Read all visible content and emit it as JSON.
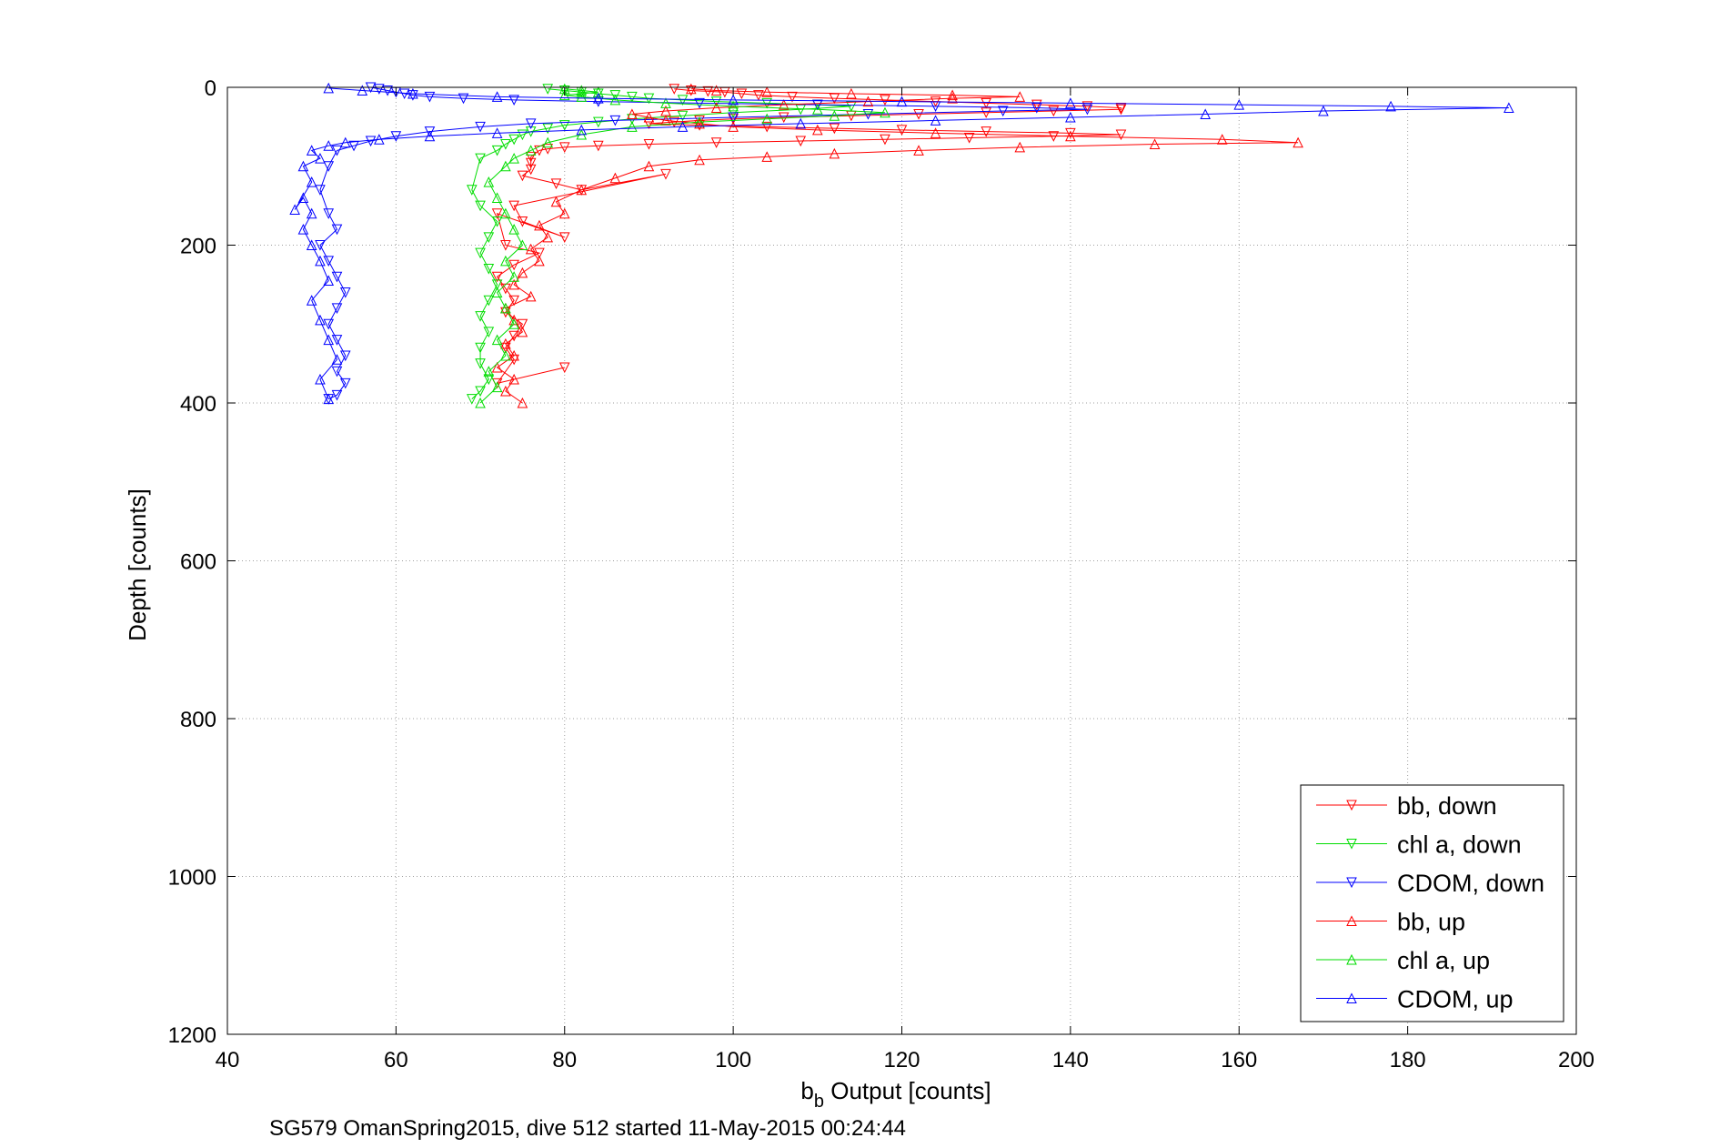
{
  "chart_data": {
    "type": "line",
    "xlabel_main": "b",
    "xlabel_sub": "b",
    "xlabel_rest": " Output [counts]",
    "ylabel": "Depth [counts]",
    "caption": "SG579 OmanSpring2015, dive 512 started 11-May-2015 00:24:44",
    "xlim": [
      40,
      200
    ],
    "ylim": [
      0,
      1200
    ],
    "y_reversed": true,
    "xticks": [
      "40",
      "60",
      "80",
      "100",
      "120",
      "140",
      "160",
      "180",
      "200"
    ],
    "yticks": [
      "0",
      "200",
      "400",
      "600",
      "800",
      "1000",
      "1200"
    ],
    "grid": true,
    "legend_position": "bottom-right",
    "series": [
      {
        "name": "bb, down",
        "color": "#ff0000",
        "marker": "triangle-down",
        "connected": true,
        "x": [
          93,
          95,
          97,
          99,
          101,
          103,
          107,
          112,
          118,
          124,
          130,
          136,
          142,
          146,
          146,
          138,
          130,
          122,
          114,
          106,
          100,
          96,
          93,
          90,
          96,
          104,
          112,
          120,
          130,
          140,
          146,
          138,
          128,
          118,
          108,
          98,
          90,
          84,
          80,
          78,
          77,
          76,
          76,
          76,
          75,
          79,
          82,
          92,
          74,
          75,
          80,
          72,
          73,
          77,
          74,
          72,
          73,
          74,
          73,
          75,
          74,
          73,
          74,
          72,
          80
        ],
        "y": [
          2,
          4,
          5,
          6,
          8,
          10,
          12,
          14,
          16,
          18,
          20,
          22,
          24,
          26,
          28,
          30,
          32,
          34,
          36,
          38,
          40,
          42,
          44,
          46,
          48,
          50,
          52,
          54,
          56,
          58,
          60,
          62,
          64,
          66,
          68,
          70,
          72,
          74,
          76,
          78,
          80,
          88,
          96,
          104,
          112,
          122,
          130,
          110,
          150,
          170,
          190,
          160,
          200,
          210,
          225,
          240,
          255,
          270,
          285,
          300,
          315,
          330,
          345,
          375,
          355
        ]
      },
      {
        "name": "chl a, down",
        "color": "#00dd00",
        "marker": "triangle-down",
        "connected": true,
        "x": [
          78,
          80,
          82,
          84,
          86,
          88,
          90,
          94,
          98,
          104,
          110,
          114,
          108,
          100,
          94,
          88,
          84,
          80,
          78,
          76,
          75,
          74,
          73,
          72,
          70,
          69,
          70,
          72,
          71,
          70,
          71,
          72,
          71,
          70,
          71,
          70,
          70,
          71,
          70,
          69
        ],
        "y": [
          2,
          4,
          6,
          8,
          10,
          12,
          14,
          16,
          18,
          20,
          22,
          24,
          28,
          32,
          36,
          40,
          44,
          48,
          52,
          56,
          60,
          66,
          72,
          80,
          90,
          130,
          150,
          170,
          190,
          210,
          230,
          250,
          270,
          290,
          310,
          330,
          350,
          370,
          385,
          395
        ]
      },
      {
        "name": "CDOM, down",
        "color": "#0000ff",
        "marker": "triangle-down",
        "connected": true,
        "x": [
          57,
          58,
          59,
          60,
          61,
          62,
          64,
          68,
          74,
          84,
          96,
          110,
          124,
          136,
          142,
          132,
          116,
          100,
          86,
          76,
          70,
          64,
          60,
          57,
          55,
          53,
          52,
          51,
          52,
          53,
          51,
          52,
          53,
          54,
          53,
          52,
          53,
          54,
          53,
          54,
          53,
          52
        ],
        "y": [
          0,
          2,
          4,
          6,
          8,
          10,
          12,
          14,
          16,
          18,
          20,
          22,
          24,
          26,
          28,
          30,
          34,
          38,
          42,
          46,
          50,
          56,
          62,
          68,
          74,
          80,
          100,
          130,
          160,
          180,
          200,
          220,
          240,
          260,
          280,
          300,
          320,
          340,
          360,
          375,
          390,
          395
        ]
      },
      {
        "name": "bb, up",
        "color": "#ff0000",
        "marker": "triangle-up",
        "connected": true,
        "x": [
          75,
          73,
          74,
          72,
          74,
          73,
          75,
          74,
          73,
          76,
          74,
          75,
          77,
          76,
          78,
          77,
          80,
          79,
          82,
          86,
          90,
          96,
          104,
          112,
          122,
          134,
          150,
          167,
          158,
          140,
          124,
          110,
          100,
          96,
          92,
          90,
          88,
          92,
          98,
          106,
          116,
          126,
          134,
          126,
          114,
          104,
          98,
          95
        ],
        "y": [
          400,
          385,
          370,
          355,
          340,
          325,
          310,
          295,
          280,
          265,
          250,
          235,
          220,
          205,
          190,
          175,
          160,
          145,
          130,
          115,
          100,
          92,
          88,
          84,
          80,
          76,
          72,
          70,
          66,
          62,
          58,
          54,
          50,
          46,
          42,
          38,
          34,
          30,
          26,
          22,
          18,
          14,
          12,
          10,
          8,
          6,
          4,
          2
        ]
      },
      {
        "name": "chl a, up",
        "color": "#00dd00",
        "marker": "triangle-up",
        "connected": true,
        "x": [
          70,
          72,
          71,
          73,
          72,
          74,
          73,
          72,
          74,
          73,
          75,
          74,
          73,
          72,
          71,
          73,
          74,
          76,
          78,
          82,
          88,
          96,
          104,
          112,
          118,
          110,
          100,
          92,
          86,
          82,
          80,
          82,
          84,
          82,
          80
        ],
        "y": [
          400,
          380,
          360,
          340,
          320,
          300,
          280,
          260,
          240,
          220,
          200,
          180,
          160,
          140,
          120,
          100,
          90,
          80,
          70,
          60,
          50,
          44,
          40,
          36,
          32,
          28,
          24,
          20,
          16,
          12,
          10,
          8,
          6,
          4,
          2
        ]
      },
      {
        "name": "CDOM, up",
        "color": "#0000ff",
        "marker": "triangle-up",
        "connected": true,
        "x": [
          52,
          51,
          53,
          52,
          51,
          50,
          52,
          51,
          50,
          49,
          50,
          49,
          48,
          50,
          49,
          51,
          50,
          52,
          54,
          58,
          64,
          72,
          82,
          94,
          108,
          124,
          140,
          156,
          170,
          192,
          178,
          160,
          140,
          120,
          100,
          84,
          72,
          62,
          56,
          52
        ],
        "y": [
          395,
          370,
          345,
          320,
          295,
          270,
          245,
          220,
          200,
          180,
          160,
          140,
          155,
          120,
          100,
          90,
          80,
          74,
          70,
          66,
          62,
          58,
          54,
          50,
          46,
          42,
          38,
          34,
          30,
          26,
          24,
          22,
          20,
          18,
          16,
          14,
          12,
          8,
          4,
          1
        ]
      }
    ]
  }
}
